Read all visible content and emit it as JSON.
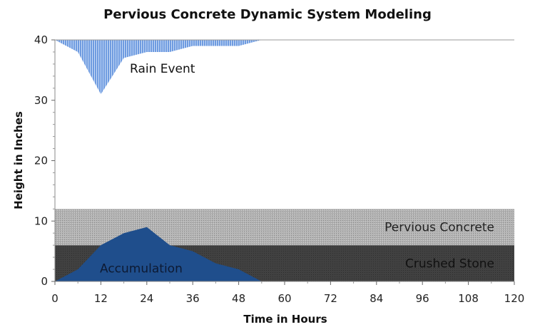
{
  "chart_data": {
    "type": "area",
    "title": "Pervious Concrete Dynamic System Modeling",
    "xlabel": "Time in Hours",
    "ylabel": "Height in Inches",
    "xlim": [
      0,
      120
    ],
    "ylim": [
      0,
      40
    ],
    "x_ticks": [
      "0",
      "12",
      "24",
      "36",
      "48",
      "60",
      "72",
      "84",
      "96",
      "108",
      "120"
    ],
    "y_ticks": [
      "0",
      "10",
      "20",
      "30",
      "40"
    ],
    "grid": false,
    "bands": [
      {
        "label": "Crushed Stone",
        "from": 0,
        "to": 6,
        "color": "#3f3f3f"
      },
      {
        "label": "Pervious Concrete",
        "from": 6,
        "to": 12,
        "color": "#a6a6a6"
      }
    ],
    "series": [
      {
        "name": "Rain Event",
        "color": "#6e9be0",
        "baseline": 40,
        "x": [
          0,
          6,
          12,
          18,
          24,
          30,
          36,
          42,
          48,
          54
        ],
        "y": [
          40,
          38,
          31,
          37,
          38,
          38,
          39,
          39,
          39,
          40
        ]
      },
      {
        "name": "Accumulation",
        "color": "#1f4e8c",
        "baseline": 0,
        "x": [
          0,
          6,
          12,
          18,
          24,
          30,
          36,
          42,
          48,
          54
        ],
        "y": [
          0,
          2,
          6,
          8,
          9,
          6,
          5,
          3,
          2,
          0
        ]
      }
    ]
  }
}
